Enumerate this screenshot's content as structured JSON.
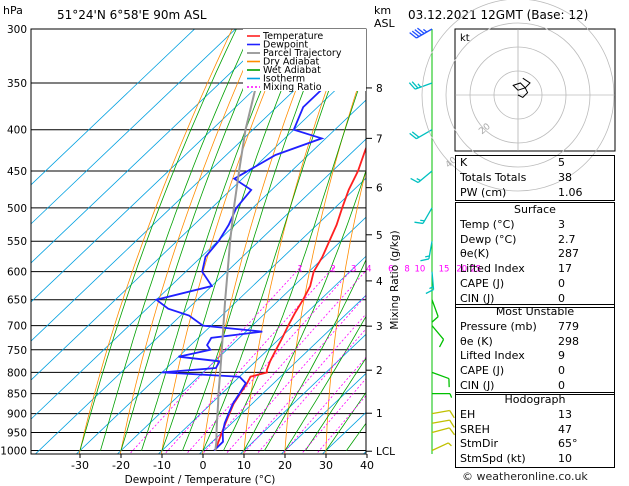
{
  "header": {
    "hpa_label": "hPa",
    "location": "51°24'N  6°58'E  90m  ASL",
    "km_label": "km",
    "asl_label": "ASL",
    "datetime": "03.12.2021  12GMT  (Base: 12)"
  },
  "legend": [
    {
      "label": "Temperature",
      "color": "#ff2020"
    },
    {
      "label": "Dewpoint",
      "color": "#2020ff"
    },
    {
      "label": "Parcel Trajectory",
      "color": "#888888"
    },
    {
      "label": "Dry Adiabat",
      "color": "#ff8c00"
    },
    {
      "label": "Wet Adiabat",
      "color": "#00a000"
    },
    {
      "label": "Isotherm",
      "color": "#00a0e0"
    },
    {
      "label": "Mixing Ratio",
      "color": "#ff00ff"
    }
  ],
  "chart_data": {
    "type": "line",
    "xlabel": "Dewpoint / Temperature (°C)",
    "ylabel_right": "Mixing Ratio (g/kg)",
    "pressure_ticks": [
      300,
      350,
      400,
      450,
      500,
      550,
      600,
      650,
      700,
      750,
      800,
      850,
      900,
      950,
      1000
    ],
    "temp_ticks": [
      -30,
      -20,
      -10,
      0,
      10,
      20,
      30,
      40
    ],
    "xlim": [
      -40,
      40
    ],
    "ylim": [
      1010,
      300
    ],
    "height_ticks": [
      {
        "label": "8",
        "p": 355
      },
      {
        "label": "7",
        "p": 410
      },
      {
        "label": "6",
        "p": 472
      },
      {
        "label": "5",
        "p": 540
      },
      {
        "label": "4",
        "p": 616
      },
      {
        "label": "3",
        "p": 701
      },
      {
        "label": "2",
        "p": 795
      },
      {
        "label": "1",
        "p": 899
      },
      {
        "label": "LCL",
        "p": 1002
      }
    ],
    "mixing_ratio_labels": [
      "1",
      "2",
      "3",
      "4",
      "6",
      "8",
      "10",
      "15",
      "20",
      "25"
    ],
    "mixing_ratio_values": [
      1,
      2,
      3,
      4,
      6,
      8,
      10,
      15,
      20,
      25
    ],
    "mixing_ratio_label_p": 593,
    "series": [
      {
        "name": "Temperature",
        "color": "#ff2020",
        "points": [
          [
            1000,
            3.0
          ],
          [
            975,
            1.5
          ],
          [
            950,
            0.0
          ],
          [
            925,
            -1.5
          ],
          [
            900,
            -3.0
          ],
          [
            875,
            -4.5
          ],
          [
            850,
            -5.5
          ],
          [
            825,
            -6.5
          ],
          [
            810,
            -7.3
          ],
          [
            800,
            -4.4
          ],
          [
            795,
            -5.0
          ],
          [
            775,
            -6.5
          ],
          [
            750,
            -8.0
          ],
          [
            725,
            -9.5
          ],
          [
            700,
            -11.2
          ],
          [
            675,
            -12.8
          ],
          [
            650,
            -14.2
          ],
          [
            625,
            -16.0
          ],
          [
            600,
            -18.8
          ],
          [
            575,
            -20.5
          ],
          [
            550,
            -22.8
          ],
          [
            525,
            -25.2
          ],
          [
            500,
            -28.2
          ],
          [
            475,
            -31.2
          ],
          [
            450,
            -33.8
          ],
          [
            425,
            -37.2
          ],
          [
            400,
            -40.6
          ],
          [
            375,
            -44.6
          ],
          [
            350,
            -48.4
          ],
          [
            325,
            -52.6
          ],
          [
            300,
            -57.0
          ]
        ]
      },
      {
        "name": "Dewpoint",
        "color": "#2020ff",
        "points": [
          [
            1000,
            2.7
          ],
          [
            975,
            2.6
          ],
          [
            950,
            0.2
          ],
          [
            925,
            -1.7
          ],
          [
            900,
            -3.2
          ],
          [
            875,
            -4.7
          ],
          [
            850,
            -5.7
          ],
          [
            825,
            -6.8
          ],
          [
            810,
            -10.0
          ],
          [
            800,
            -30.0
          ],
          [
            790,
            -18.0
          ],
          [
            775,
            -18.8
          ],
          [
            765,
            -30.0
          ],
          [
            750,
            -24.0
          ],
          [
            740,
            -26.0
          ],
          [
            725,
            -26.8
          ],
          [
            712,
            -16.0
          ],
          [
            700,
            -32.0
          ],
          [
            680,
            -38.0
          ],
          [
            667,
            -44.8
          ],
          [
            650,
            -50.0
          ],
          [
            625,
            -40.0
          ],
          [
            600,
            -46.0
          ],
          [
            575,
            -49.0
          ],
          [
            550,
            -49.8
          ],
          [
            525,
            -51.5
          ],
          [
            500,
            -54.0
          ],
          [
            475,
            -55.0
          ],
          [
            460,
            -62.0
          ],
          [
            430,
            -58.0
          ],
          [
            410,
            -51.0
          ],
          [
            400,
            -60.0
          ],
          [
            375,
            -63.5
          ],
          [
            350,
            -63.5
          ],
          [
            325,
            -58.0
          ],
          [
            300,
            -66.5
          ]
        ]
      },
      {
        "name": "Parcel Trajectory",
        "color": "#999999",
        "points": [
          [
            1000,
            3.0
          ],
          [
            975,
            1.0
          ],
          [
            950,
            -1.3
          ],
          [
            925,
            -3.6
          ],
          [
            900,
            -5.9
          ],
          [
            875,
            -8.3
          ],
          [
            850,
            -10.8
          ],
          [
            800,
            -15.8
          ],
          [
            750,
            -21.2
          ],
          [
            700,
            -27.0
          ],
          [
            650,
            -33.2
          ],
          [
            600,
            -39.8
          ],
          [
            550,
            -47.0
          ],
          [
            500,
            -54.6
          ],
          [
            450,
            -62.8
          ],
          [
            400,
            -71.8
          ],
          [
            350,
            -81.0
          ],
          [
            300,
            -90.4
          ]
        ]
      }
    ],
    "wind_barbs": [
      {
        "p": 1000,
        "dir": 65,
        "spd": 5
      },
      {
        "p": 950,
        "dir": 75,
        "spd": 10
      },
      {
        "p": 925,
        "dir": 80,
        "spd": 10
      },
      {
        "p": 900,
        "dir": 80,
        "spd": 10
      },
      {
        "p": 850,
        "dir": 90,
        "spd": 5
      },
      {
        "p": 800,
        "dir": 110,
        "spd": 10
      },
      {
        "p": 700,
        "dir": 140,
        "spd": 10
      },
      {
        "p": 650,
        "dir": 160,
        "spd": 10
      },
      {
        "p": 600,
        "dir": 175,
        "spd": 15
      },
      {
        "p": 550,
        "dir": 190,
        "spd": 15
      },
      {
        "p": 500,
        "dir": 210,
        "spd": 15
      },
      {
        "p": 450,
        "dir": 230,
        "spd": 15
      },
      {
        "p": 400,
        "dir": 240,
        "spd": 20
      },
      {
        "p": 350,
        "dir": 250,
        "spd": 25
      },
      {
        "p": 300,
        "dir": 240,
        "spd": 45
      }
    ],
    "hodograph": {
      "label": "kt",
      "rings_kt": [
        10,
        20,
        30,
        40
      ],
      "ring_labels": [
        "20",
        "40"
      ],
      "trace": [
        [
          0,
          0
        ],
        [
          2,
          1
        ],
        [
          4,
          -1
        ],
        [
          3,
          -3
        ],
        [
          1,
          -5
        ],
        [
          -2,
          -4
        ],
        [
          0,
          -2
        ],
        [
          3,
          -3
        ],
        [
          5,
          -5
        ],
        [
          2,
          -7
        ]
      ]
    },
    "colors": {
      "isotherm": "#00a0e0",
      "dry_adiabat": "#ff8c00",
      "wet_adiabat": "#00a000",
      "mixing_ratio": "#ff00ff",
      "wind_barb": "#00c000"
    }
  },
  "indices": {
    "rows": [
      {
        "label": "K",
        "value": "5"
      },
      {
        "label": "Totals Totals",
        "value": "38"
      },
      {
        "label": "PW (cm)",
        "value": "1.06"
      }
    ]
  },
  "surface": {
    "title": "Surface",
    "rows": [
      {
        "label": "Temp (°C)",
        "value": "3"
      },
      {
        "label": "Dewp (°C)",
        "value": "2.7"
      },
      {
        "label": "θe(K)",
        "value": "287"
      },
      {
        "label": "Lifted Index",
        "value": "17"
      },
      {
        "label": "CAPE (J)",
        "value": "0"
      },
      {
        "label": "CIN (J)",
        "value": "0"
      }
    ]
  },
  "most_unstable": {
    "title": "Most Unstable",
    "rows": [
      {
        "label": "Pressure (mb)",
        "value": "779"
      },
      {
        "label": "θe (K)",
        "value": "298"
      },
      {
        "label": "Lifted Index",
        "value": "9"
      },
      {
        "label": "CAPE (J)",
        "value": "0"
      },
      {
        "label": "CIN (J)",
        "value": "0"
      }
    ]
  },
  "hodograph_table": {
    "title": "Hodograph",
    "rows": [
      {
        "label": "EH",
        "value": "13"
      },
      {
        "label": "SREH",
        "value": "47"
      },
      {
        "label": "StmDir",
        "value": "65°"
      },
      {
        "label": "StmSpd (kt)",
        "value": "10"
      }
    ]
  },
  "footer": {
    "copyright": "© weatheronline.co.uk"
  }
}
